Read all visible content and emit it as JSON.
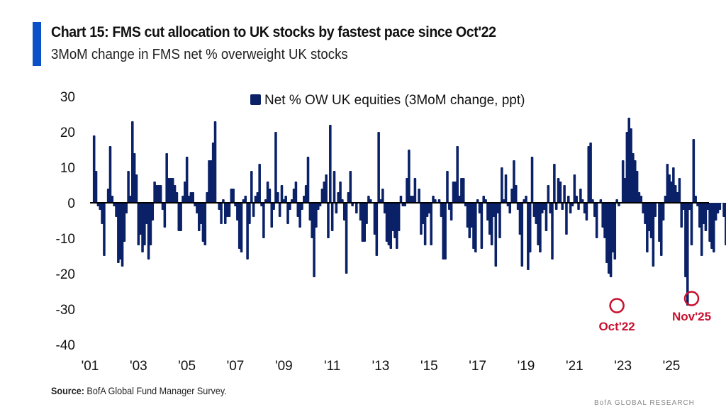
{
  "header": {
    "title": "Chart 15: FMS cut allocation to UK stocks by fastest pace since Oct'22",
    "subtitle": "3MoM change in FMS net % overweight UK stocks",
    "accent_color": "#0a50c8"
  },
  "footer": {
    "source_label": "Source:",
    "source_text": " BofA Global Fund Manager Survey.",
    "watermark": "BofA GLOBAL RESEARCH"
  },
  "chart_data": {
    "type": "bar",
    "title": "Chart 15: FMS cut allocation to UK stocks by fastest pace since Oct'22",
    "subtitle": "3MoM change in FMS net % overweight UK stocks",
    "xlabel": "",
    "ylabel": "",
    "ylim": [
      -40,
      30
    ],
    "yticks": [
      30,
      20,
      10,
      0,
      -10,
      -20,
      -30,
      -40
    ],
    "ytick_labels": [
      "30",
      "20",
      "10",
      "0",
      "-10",
      "-20",
      "-30",
      "-40"
    ],
    "xtick_labels": [
      "'01",
      "'03",
      "'05",
      "'07",
      "'09",
      "'11",
      "'13",
      "'15",
      "'17",
      "'19",
      "'21",
      "'23",
      "'25"
    ],
    "xtick_years": [
      2001,
      2003,
      2005,
      2007,
      2009,
      2011,
      2013,
      2015,
      2017,
      2019,
      2021,
      2023,
      2025
    ],
    "x_start": "2001-03",
    "x_end": "2025-11",
    "frequency": "monthly",
    "grid": false,
    "legend": {
      "position": "top-center",
      "entries": [
        "Net % OW UK equities (3MoM change, ppt)"
      ]
    },
    "bar_color": "#0a2168",
    "annotation_color": "#c8102e",
    "annotations": [
      {
        "label": "Oct'22",
        "date": "2022-10",
        "value": -29
      },
      {
        "label": "Nov'25",
        "date": "2025-11",
        "value": -27
      }
    ],
    "series": [
      {
        "name": "Net % OW UK equities (3MoM change, ppt)",
        "values": [
          19,
          9,
          -1,
          -2,
          -6,
          -15,
          0,
          4,
          16,
          2,
          -1,
          -4,
          -17,
          -16,
          -18,
          -11,
          -3,
          9,
          2,
          23,
          14,
          8,
          -12,
          -9,
          -14,
          -12,
          -6,
          -16,
          -12,
          -5,
          6,
          5,
          5,
          5,
          -2,
          -7,
          14,
          7,
          7,
          7,
          5,
          3,
          -8,
          -8,
          2,
          6,
          13,
          2,
          3,
          3,
          -1,
          -3,
          -8,
          -6,
          -11,
          -12,
          3,
          12,
          12,
          17,
          23,
          0,
          -2,
          -6,
          1,
          -6,
          -4,
          -4,
          4,
          4,
          -1,
          -5,
          -13,
          -14,
          1,
          2,
          -16,
          -6,
          9,
          -4,
          2,
          3,
          11,
          -1,
          -10,
          1,
          6,
          4,
          -7,
          -2,
          20,
          3,
          -4,
          5,
          1,
          2,
          -6,
          -2,
          1,
          4,
          6,
          -4,
          -7,
          -2,
          2,
          5,
          13,
          -5,
          -10,
          -21,
          -7,
          -2,
          -1,
          4,
          6,
          8,
          -10,
          22,
          -8,
          9,
          -3,
          3,
          6,
          1,
          -5,
          -20,
          3,
          9,
          -1,
          0,
          -3,
          0,
          -5,
          -11,
          -11,
          -6,
          2,
          1,
          0,
          -9,
          -15,
          20,
          1,
          4,
          -3,
          -11,
          -12,
          -13,
          -8,
          -10,
          -13,
          -8,
          2,
          -1,
          -1,
          7,
          15,
          2,
          2,
          7,
          0,
          4,
          -9,
          -6,
          -12,
          -4,
          -3,
          -12,
          2,
          1,
          0,
          1,
          -4,
          -16,
          -16,
          9,
          -2,
          -5,
          6,
          6,
          16,
          2,
          7,
          7,
          -1,
          -7,
          -10,
          -7,
          -13,
          -14,
          1,
          -3,
          -13,
          2,
          1,
          -5,
          -9,
          -12,
          -4,
          -18,
          -3,
          -10,
          10,
          1,
          8,
          -1,
          -3,
          4,
          12,
          5,
          -2,
          -9,
          -18,
          1,
          2,
          -19,
          -14,
          13,
          -4,
          -6,
          -12,
          -14,
          -3,
          -2,
          -8,
          5,
          -3,
          -16,
          11,
          -2,
          7,
          6,
          -2,
          5,
          -9,
          2,
          -3,
          -1,
          8,
          2,
          -2,
          4,
          1,
          -3,
          -5,
          16,
          17,
          1,
          -4,
          -10,
          0,
          1,
          -7,
          -10,
          -17,
          -20,
          -21,
          -14,
          -16,
          1,
          -1,
          0,
          12,
          7,
          20,
          24,
          21,
          14,
          12,
          9,
          3,
          2,
          -3,
          -6,
          -14,
          -8,
          -10,
          -18,
          -4,
          0,
          -11,
          -15,
          -5,
          2,
          11,
          8,
          6,
          10,
          5,
          3,
          7,
          -7,
          -2,
          -21,
          -29,
          -2,
          -12,
          18,
          2,
          -1,
          -7,
          -15,
          -6,
          -8,
          -2,
          -11,
          -13,
          -14,
          -5,
          -3,
          -2,
          0,
          -4,
          -12,
          1,
          2,
          -5,
          -9,
          11,
          10,
          14,
          15,
          13,
          13,
          13,
          -3,
          -8,
          -8,
          -12,
          -14,
          18,
          14,
          -11,
          2,
          0,
          -16,
          -17,
          -27
        ]
      }
    ]
  }
}
